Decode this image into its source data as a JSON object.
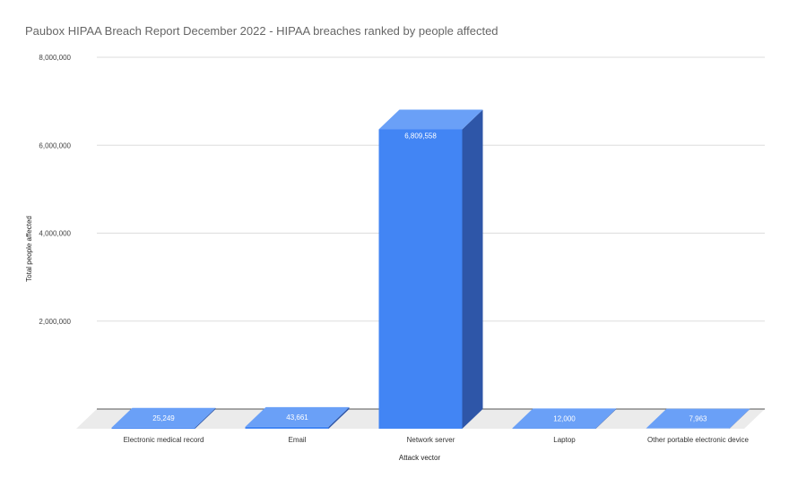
{
  "chart_data": {
    "type": "bar",
    "style": "3d",
    "title": "Paubox HIPAA Breach Report December 2022 - HIPAA breaches ranked by people affected",
    "xlabel": "Attack vector",
    "ylabel": "Total people affected",
    "categories": [
      "Electronic medical record",
      "Email",
      "Network server",
      "Laptop",
      "Other portable electronic device"
    ],
    "values": [
      25249,
      43661,
      6809558,
      12000,
      7963
    ],
    "data_labels": [
      "25,249",
      "43,661",
      "6,809,558",
      "12,000",
      "7,963"
    ],
    "ylim": [
      0,
      8000000
    ],
    "yticks": [
      2000000,
      4000000,
      6000000,
      8000000
    ],
    "ytick_labels": [
      "2,000,000",
      "4,000,000",
      "6,000,000",
      "8,000,000"
    ],
    "grid": true,
    "legend": "none",
    "colors": {
      "bar_front": "#4285f4",
      "bar_top": "#6aa0f7",
      "bar_side": "#2e56a8",
      "floor": "#ebebeb"
    }
  }
}
